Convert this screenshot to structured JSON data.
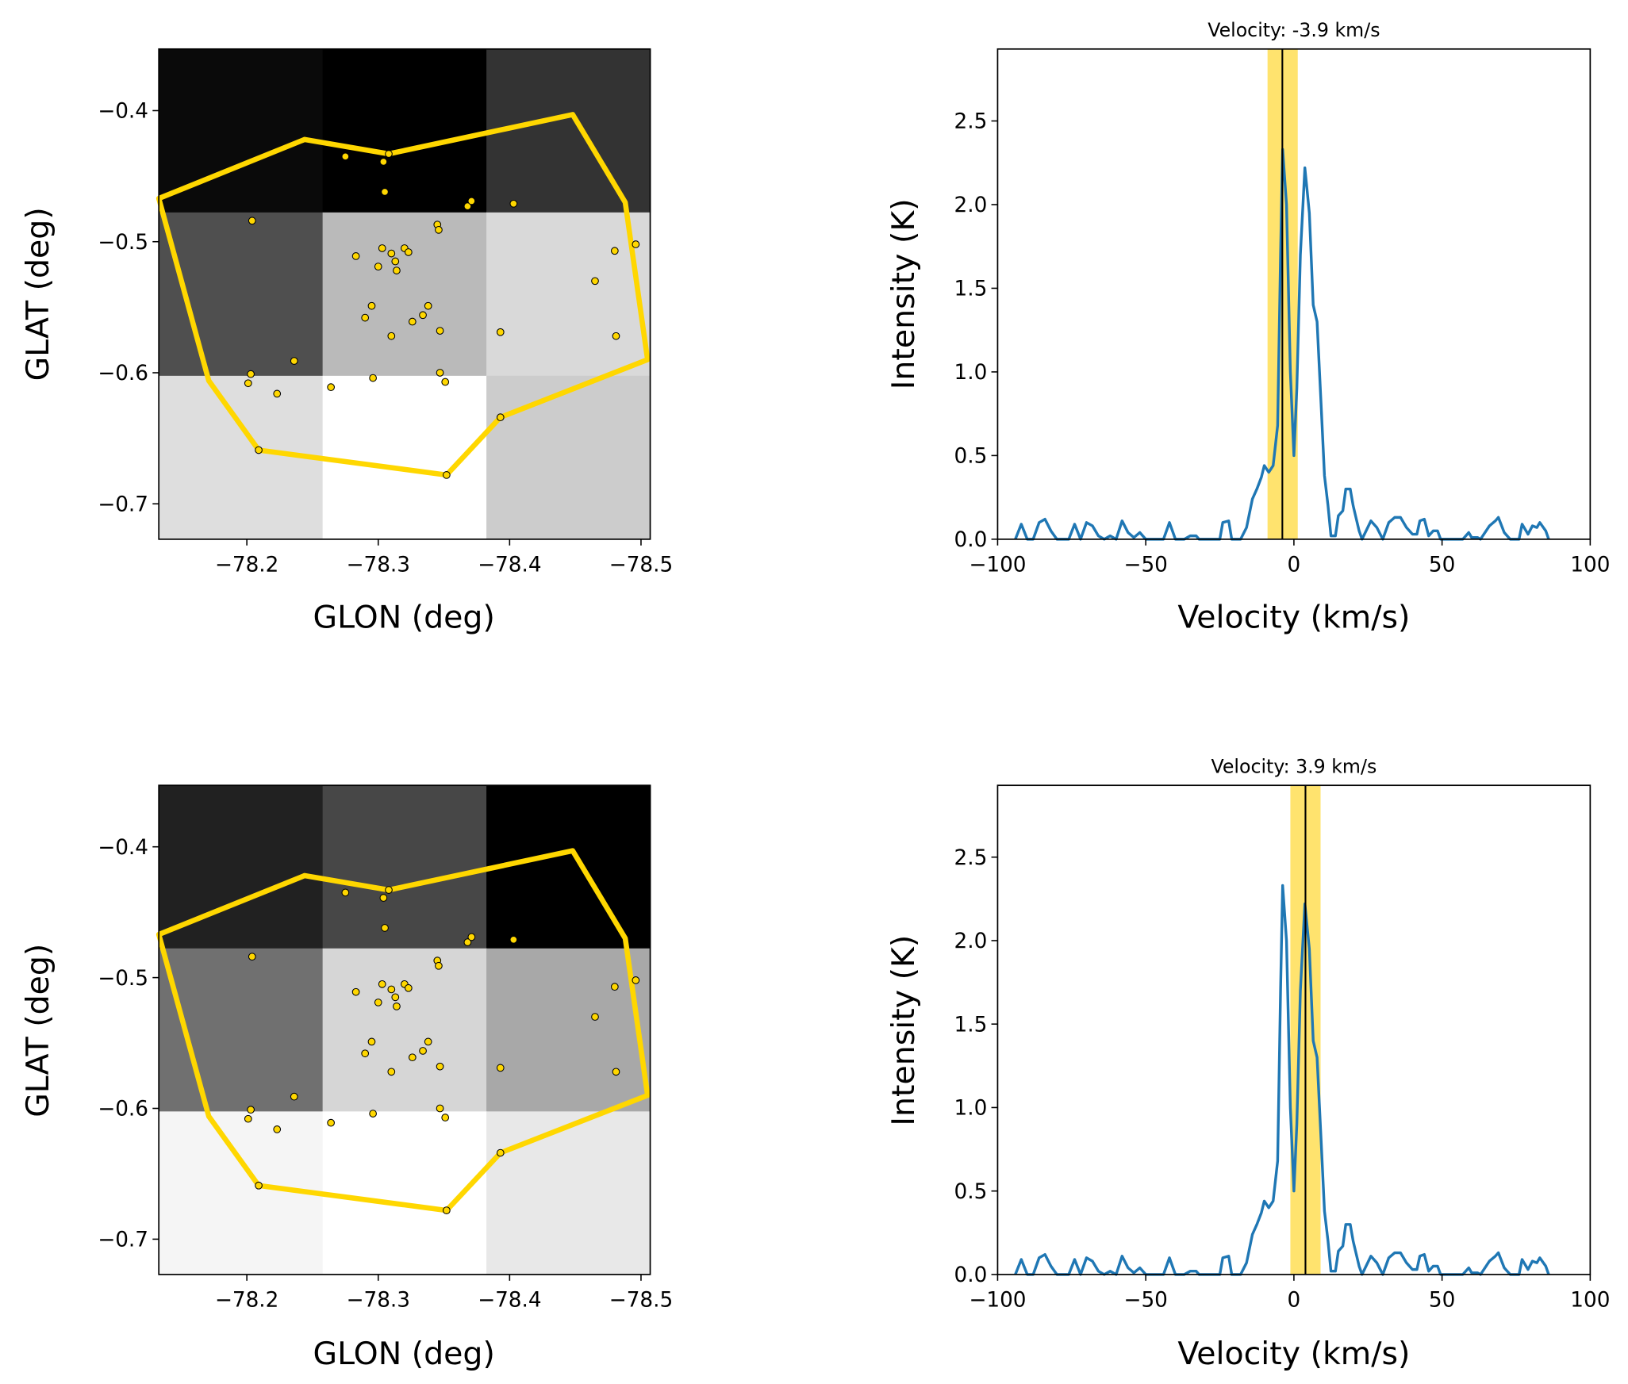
{
  "chart_data": [
    {
      "type": "heatmap",
      "panel": "map-top",
      "xlabel": "GLON (deg)",
      "ylabel": "GLAT (deg)",
      "xlim": [
        -78.133,
        -78.507
      ],
      "ylim": [
        -0.727,
        -0.353
      ],
      "xticks": [
        -78.2,
        -78.3,
        -78.4,
        -78.5
      ],
      "xtick_labels": [
        "−78.2",
        "−78.3",
        "−78.4",
        "−78.5"
      ],
      "yticks": [
        -0.4,
        -0.5,
        -0.6,
        -0.7
      ],
      "ytick_labels": [
        "−0.4",
        "−0.5",
        "−0.6",
        "−0.7"
      ],
      "grid_gray": [
        [
          0.04,
          0.0,
          0.2
        ],
        [
          0.31,
          0.73,
          0.85
        ],
        [
          0.87,
          1.0,
          0.8
        ]
      ]
    },
    {
      "type": "line",
      "panel": "spectrum-top",
      "title": "Velocity: -3.9 km/s",
      "xlabel": "Velocity (km/s)",
      "ylabel": "Intensity (K)",
      "xlim": [
        -100,
        100
      ],
      "ylim": [
        0,
        2.93
      ],
      "xticks": [
        -100,
        -50,
        0,
        50,
        100
      ],
      "xtick_labels": [
        "−100",
        "−50",
        "0",
        "50",
        "100"
      ],
      "yticks": [
        0,
        0.5,
        1.0,
        1.5,
        2.0,
        2.5
      ],
      "ytick_labels": [
        "0.0",
        "0.5",
        "1.0",
        "1.5",
        "2.0",
        "2.5"
      ],
      "velocity": -3.9,
      "band": [
        -8.9,
        1.3
      ]
    },
    {
      "type": "heatmap",
      "panel": "map-bottom",
      "xlabel": "GLON (deg)",
      "ylabel": "GLAT (deg)",
      "xlim": [
        -78.133,
        -78.507
      ],
      "ylim": [
        -0.727,
        -0.353
      ],
      "xticks": [
        -78.2,
        -78.3,
        -78.4,
        -78.5
      ],
      "xtick_labels": [
        "−78.2",
        "−78.3",
        "−78.4",
        "−78.5"
      ],
      "yticks": [
        -0.4,
        -0.5,
        -0.6,
        -0.7
      ],
      "ytick_labels": [
        "−0.4",
        "−0.5",
        "−0.6",
        "−0.7"
      ],
      "grid_gray": [
        [
          0.13,
          0.28,
          0.0
        ],
        [
          0.44,
          0.84,
          0.66
        ],
        [
          0.96,
          1.0,
          0.91
        ]
      ]
    },
    {
      "type": "line",
      "panel": "spectrum-bottom",
      "title": "Velocity: 3.9 km/s",
      "xlabel": "Velocity (km/s)",
      "ylabel": "Intensity (K)",
      "xlim": [
        -100,
        100
      ],
      "ylim": [
        0,
        2.93
      ],
      "xticks": [
        -100,
        -50,
        0,
        50,
        100
      ],
      "xtick_labels": [
        "−100",
        "−50",
        "0",
        "50",
        "100"
      ],
      "yticks": [
        0,
        0.5,
        1.0,
        1.5,
        2.0,
        2.5
      ],
      "ytick_labels": [
        "0.0",
        "0.5",
        "1.0",
        "1.5",
        "2.0",
        "2.5"
      ],
      "velocity": 3.9,
      "band": [
        -1.2,
        9.0
      ]
    }
  ],
  "polygon": [
    [
      -78.133,
      -0.467
    ],
    [
      -78.244,
      -0.422
    ],
    [
      -78.308,
      -0.433
    ],
    [
      -78.448,
      -0.403
    ],
    [
      -78.488,
      -0.47
    ],
    [
      -78.505,
      -0.59
    ],
    [
      -78.393,
      -0.634
    ],
    [
      -78.352,
      -0.678
    ],
    [
      -78.209,
      -0.659
    ],
    [
      -78.171,
      -0.606
    ]
  ],
  "sources": [
    [
      -78.275,
      -0.435
    ],
    [
      -78.304,
      -0.439
    ],
    [
      -78.308,
      -0.433
    ],
    [
      -78.305,
      -0.462
    ],
    [
      -78.368,
      -0.473
    ],
    [
      -78.371,
      -0.469
    ],
    [
      -78.403,
      -0.471
    ],
    [
      -78.204,
      -0.484
    ],
    [
      -78.345,
      -0.487
    ],
    [
      -78.346,
      -0.491
    ],
    [
      -78.303,
      -0.505
    ],
    [
      -78.31,
      -0.509
    ],
    [
      -78.283,
      -0.511
    ],
    [
      -78.313,
      -0.515
    ],
    [
      -78.32,
      -0.505
    ],
    [
      -78.323,
      -0.508
    ],
    [
      -78.3,
      -0.519
    ],
    [
      -78.314,
      -0.522
    ],
    [
      -78.48,
      -0.507
    ],
    [
      -78.496,
      -0.502
    ],
    [
      -78.465,
      -0.53
    ],
    [
      -78.295,
      -0.549
    ],
    [
      -78.29,
      -0.558
    ],
    [
      -78.338,
      -0.549
    ],
    [
      -78.334,
      -0.556
    ],
    [
      -78.326,
      -0.561
    ],
    [
      -78.31,
      -0.572
    ],
    [
      -78.347,
      -0.568
    ],
    [
      -78.393,
      -0.569
    ],
    [
      -78.481,
      -0.572
    ],
    [
      -78.236,
      -0.591
    ],
    [
      -78.203,
      -0.601
    ],
    [
      -78.201,
      -0.608
    ],
    [
      -78.223,
      -0.616
    ],
    [
      -78.264,
      -0.611
    ],
    [
      -78.296,
      -0.604
    ],
    [
      -78.347,
      -0.6
    ],
    [
      -78.351,
      -0.607
    ],
    [
      -78.393,
      -0.634
    ],
    [
      -78.209,
      -0.659
    ],
    [
      -78.352,
      -0.678
    ]
  ],
  "spectrum": [
    [
      -94,
      0
    ],
    [
      -92,
      0.09
    ],
    [
      -90,
      0
    ],
    [
      -88,
      0
    ],
    [
      -86,
      0.1
    ],
    [
      -84,
      0.12
    ],
    [
      -82,
      0.05
    ],
    [
      -80,
      0
    ],
    [
      -76,
      0
    ],
    [
      -74,
      0.09
    ],
    [
      -72,
      0
    ],
    [
      -70,
      0.1
    ],
    [
      -68,
      0.08
    ],
    [
      -66,
      0.02
    ],
    [
      -64,
      0
    ],
    [
      -62,
      0.02
    ],
    [
      -60,
      0
    ],
    [
      -58,
      0.11
    ],
    [
      -56,
      0.04
    ],
    [
      -54,
      0.01
    ],
    [
      -52,
      0.04
    ],
    [
      -50,
      0
    ],
    [
      -44,
      0
    ],
    [
      -42,
      0.1
    ],
    [
      -40,
      0
    ],
    [
      -37,
      0
    ],
    [
      -35,
      0.02
    ],
    [
      -33,
      0.02
    ],
    [
      -32,
      0
    ],
    [
      -25,
      0
    ],
    [
      -24,
      0.1
    ],
    [
      -22,
      0.11
    ],
    [
      -21,
      0
    ],
    [
      -18,
      0
    ],
    [
      -16,
      0.07
    ],
    [
      -14,
      0.24
    ],
    [
      -12.5,
      0.3
    ],
    [
      -11,
      0.37
    ],
    [
      -10,
      0.44
    ],
    [
      -8.5,
      0.4
    ],
    [
      -7,
      0.44
    ],
    [
      -5.5,
      0.68
    ],
    [
      -4.5,
      1.7
    ],
    [
      -3.8,
      2.33
    ],
    [
      -2.5,
      2.0
    ],
    [
      -1.2,
      1.0
    ],
    [
      0,
      0.5
    ],
    [
      1,
      0.9
    ],
    [
      2.2,
      1.7
    ],
    [
      3.7,
      2.22
    ],
    [
      5.2,
      1.95
    ],
    [
      6.5,
      1.4
    ],
    [
      7.8,
      1.3
    ],
    [
      9.2,
      0.8
    ],
    [
      10.3,
      0.38
    ],
    [
      11.5,
      0.2
    ],
    [
      12.5,
      0.02
    ],
    [
      14,
      0.02
    ],
    [
      15,
      0.14
    ],
    [
      16.5,
      0.17
    ],
    [
      17.5,
      0.3
    ],
    [
      19,
      0.3
    ],
    [
      20,
      0.2
    ],
    [
      22,
      0.05
    ],
    [
      23,
      0
    ],
    [
      26,
      0.11
    ],
    [
      28,
      0.07
    ],
    [
      30,
      0
    ],
    [
      32,
      0.1
    ],
    [
      34,
      0.13
    ],
    [
      36,
      0.13
    ],
    [
      38,
      0.07
    ],
    [
      40,
      0.03
    ],
    [
      41.5,
      0.03
    ],
    [
      42.5,
      0.11
    ],
    [
      44,
      0.12
    ],
    [
      45.5,
      0.02
    ],
    [
      47,
      0.05
    ],
    [
      48.5,
      0.05
    ],
    [
      49.5,
      0
    ],
    [
      57,
      0
    ],
    [
      59,
      0.04
    ],
    [
      60,
      0.01
    ],
    [
      62,
      0.01
    ],
    [
      63,
      0
    ],
    [
      66,
      0.08
    ],
    [
      68,
      0.11
    ],
    [
      69,
      0.13
    ],
    [
      71,
      0.04
    ],
    [
      73,
      0
    ],
    [
      76,
      0
    ],
    [
      77,
      0.09
    ],
    [
      79,
      0.03
    ],
    [
      80.5,
      0.08
    ],
    [
      82,
      0.07
    ],
    [
      83,
      0.1
    ],
    [
      85,
      0.05
    ],
    [
      86,
      0
    ]
  ],
  "colors": {
    "polygon": "#ffd700",
    "marker": "#ffd700",
    "spectrum": "#1f77b4",
    "band": "#ffe36e",
    "vline": "#000000"
  }
}
